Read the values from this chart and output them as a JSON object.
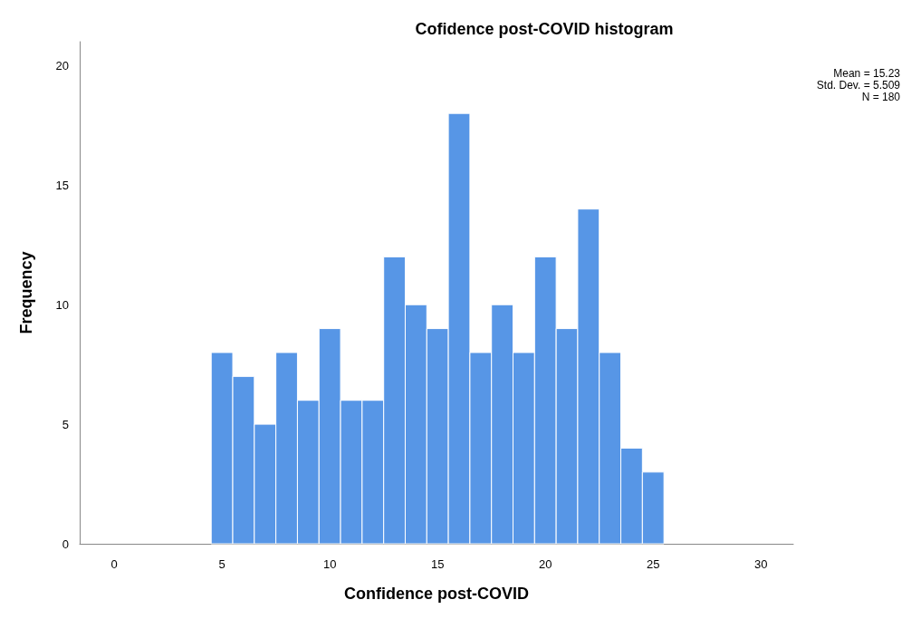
{
  "chart_data": {
    "type": "histogram",
    "title": "Cofidence post-COVID histogram",
    "xlabel": "Confidence post-COVID",
    "ylabel": "Frequency",
    "bins": [
      4.5,
      5.5,
      6.5,
      7.5,
      8.5,
      9.5,
      10.5,
      11.5,
      12.5,
      13.5,
      14.5,
      15.5,
      16.5,
      17.5,
      18.5,
      19.5,
      20.5,
      21.5,
      22.5,
      23.5,
      24.5,
      25.5
    ],
    "values": [
      8,
      7,
      5,
      8,
      6,
      9,
      6,
      6,
      12,
      10,
      9,
      18,
      8,
      10,
      8,
      12,
      9,
      14,
      8,
      4,
      3
    ],
    "color": "#5796e6",
    "xlim": [
      -1.6,
      31.5
    ],
    "xticks": [
      0,
      5,
      10,
      15,
      20,
      25,
      30
    ],
    "ylim": [
      0,
      21
    ],
    "yticks": [
      0,
      5,
      10,
      15,
      20
    ],
    "annotations": [
      "Mean = 15.23",
      "Std. Dev. = 5.509",
      "N = 180"
    ],
    "grid": false
  }
}
